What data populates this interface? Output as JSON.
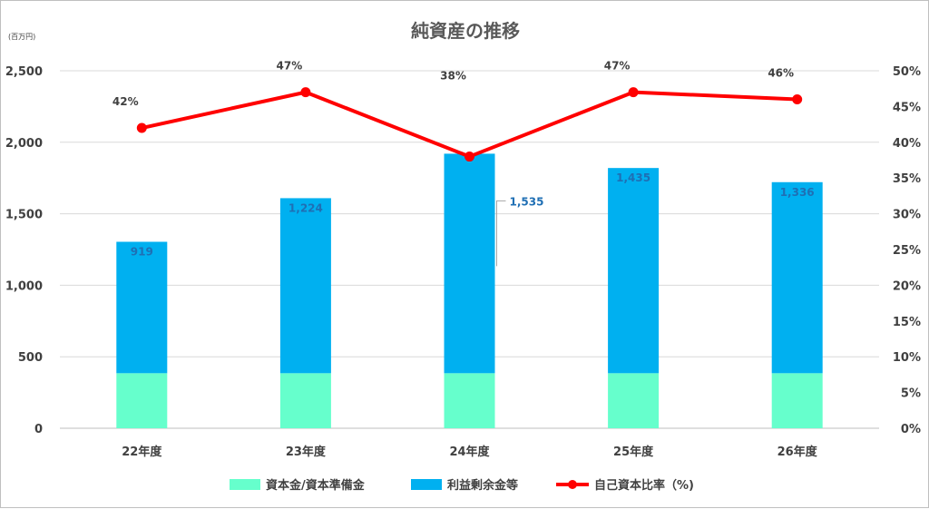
{
  "chart_data": {
    "type": "bar",
    "title": "純資産の推移",
    "y_unit": "(百万円)",
    "categories": [
      "22年度",
      "23年度",
      "24年度",
      "25年度",
      "26年度"
    ],
    "ylim": [
      0,
      2500
    ],
    "y_ticks": [
      "0",
      "500",
      "1,000",
      "1,500",
      "2,000",
      "2,500"
    ],
    "y2lim": [
      0,
      50
    ],
    "y2_ticks": [
      "0%",
      "5%",
      "10%",
      "15%",
      "20%",
      "25%",
      "30%",
      "35%",
      "40%",
      "45%",
      "50%"
    ],
    "grid": true,
    "legend_position": "bottom",
    "series": [
      {
        "name": "資本金/資本準備金",
        "type": "bar",
        "stacked": true,
        "color": "#66ffcc",
        "values": [
          385,
          385,
          385,
          385,
          385
        ]
      },
      {
        "name": "利益剰余金等",
        "type": "bar",
        "stacked": true,
        "color": "#00b0f0",
        "values": [
          919,
          1224,
          1535,
          1435,
          1336
        ],
        "labels": [
          "919",
          "1,224",
          "1,535",
          "1,435",
          "1,336"
        ]
      },
      {
        "name": "自己資本比率（%)",
        "type": "line",
        "axis": "secondary",
        "color": "#ff0000",
        "values": [
          42,
          47,
          38,
          47,
          46
        ],
        "labels": [
          "42%",
          "47%",
          "38%",
          "47%",
          "46%"
        ]
      }
    ]
  }
}
